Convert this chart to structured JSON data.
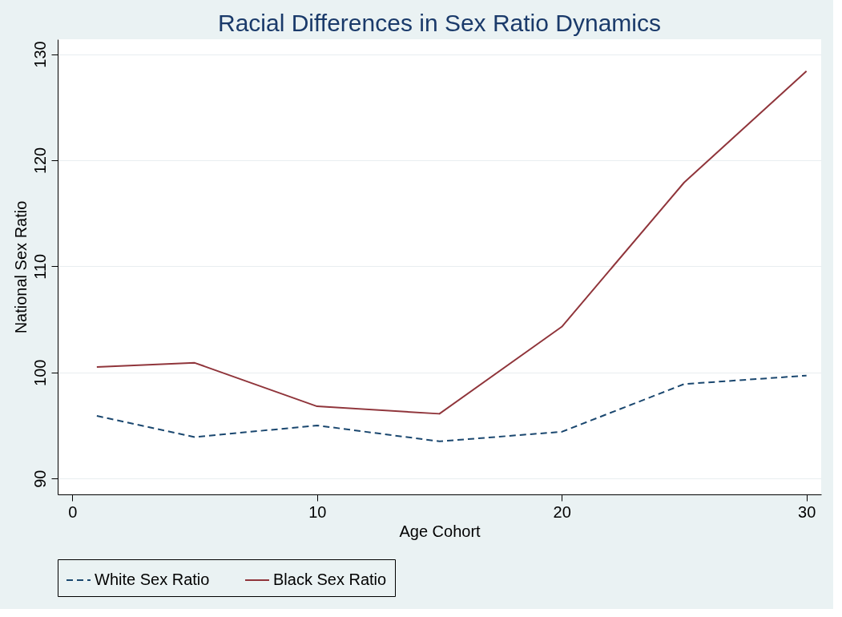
{
  "chart_data": {
    "type": "line",
    "title": "Racial Differences in Sex Ratio Dynamics",
    "xlabel": "Age Cohort",
    "ylabel": "National Sex Ratio",
    "x": [
      1,
      5,
      10,
      15,
      20,
      25,
      30
    ],
    "series": [
      {
        "name": "White Sex Ratio",
        "color": "#1a476f",
        "line_style": "dashed",
        "values": [
          95.9,
          93.9,
          95.0,
          93.5,
          94.4,
          98.9,
          99.7
        ]
      },
      {
        "name": "Black Sex Ratio",
        "color": "#90353b",
        "line_style": "solid",
        "values": [
          100.5,
          100.9,
          96.8,
          96.1,
          104.3,
          117.9,
          128.4
        ]
      }
    ],
    "xlim": [
      -0.6,
      30.6
    ],
    "xticks": [
      0,
      10,
      20,
      30
    ],
    "ylim": [
      88.5,
      131.4
    ],
    "yticks": [
      90,
      100,
      110,
      120,
      130
    ],
    "grid": "y",
    "legend": "bottom",
    "marker": "none"
  }
}
